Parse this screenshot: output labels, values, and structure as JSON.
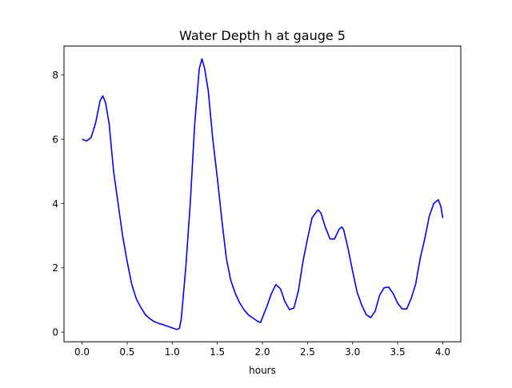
{
  "chart_data": {
    "type": "line",
    "title": "Water Depth h at gauge 5",
    "xlabel": "hours",
    "ylabel": "",
    "xlim": [
      -0.2,
      4.2
    ],
    "ylim": [
      -0.3,
      8.9
    ],
    "xticks": [
      0.0,
      0.5,
      1.0,
      1.5,
      2.0,
      2.5,
      3.0,
      3.5,
      4.0
    ],
    "xtick_labels": [
      "0.0",
      "0.5",
      "1.0",
      "1.5",
      "2.0",
      "2.5",
      "3.0",
      "3.5",
      "4.0"
    ],
    "yticks": [
      0,
      2,
      4,
      6,
      8
    ],
    "ytick_labels": [
      "0",
      "2",
      "4",
      "6",
      "8"
    ],
    "grid": false,
    "legend": false,
    "series": [
      {
        "color": "#0000ff",
        "x": [
          0.0,
          0.05,
          0.1,
          0.15,
          0.2,
          0.23,
          0.26,
          0.3,
          0.35,
          0.38,
          0.4,
          0.45,
          0.5,
          0.55,
          0.6,
          0.65,
          0.7,
          0.75,
          0.8,
          0.85,
          0.9,
          0.95,
          1.0,
          1.05,
          1.08,
          1.1,
          1.15,
          1.2,
          1.25,
          1.3,
          1.33,
          1.36,
          1.4,
          1.45,
          1.5,
          1.55,
          1.6,
          1.65,
          1.7,
          1.75,
          1.8,
          1.85,
          1.9,
          1.95,
          1.98,
          2.0,
          2.05,
          2.1,
          2.15,
          2.2,
          2.25,
          2.3,
          2.35,
          2.4,
          2.45,
          2.5,
          2.55,
          2.6,
          2.62,
          2.65,
          2.7,
          2.75,
          2.8,
          2.85,
          2.88,
          2.9,
          2.95,
          3.0,
          3.05,
          3.1,
          3.15,
          3.2,
          3.25,
          3.3,
          3.35,
          3.4,
          3.45,
          3.5,
          3.55,
          3.6,
          3.65,
          3.7,
          3.75,
          3.8,
          3.85,
          3.9,
          3.95,
          3.98,
          4.0
        ],
        "y": [
          6.0,
          5.95,
          6.05,
          6.5,
          7.2,
          7.35,
          7.15,
          6.5,
          5.0,
          4.4,
          4.0,
          3.0,
          2.2,
          1.5,
          1.05,
          0.78,
          0.55,
          0.42,
          0.33,
          0.27,
          0.23,
          0.18,
          0.13,
          0.08,
          0.12,
          0.4,
          2.0,
          4.0,
          6.5,
          8.2,
          8.5,
          8.2,
          7.5,
          6.0,
          4.8,
          3.5,
          2.3,
          1.6,
          1.2,
          0.9,
          0.68,
          0.52,
          0.43,
          0.33,
          0.3,
          0.45,
          0.8,
          1.2,
          1.48,
          1.35,
          0.95,
          0.7,
          0.75,
          1.3,
          2.2,
          2.9,
          3.55,
          3.75,
          3.8,
          3.7,
          3.25,
          2.9,
          2.9,
          3.2,
          3.27,
          3.2,
          2.6,
          1.9,
          1.25,
          0.85,
          0.55,
          0.45,
          0.65,
          1.15,
          1.38,
          1.4,
          1.2,
          0.9,
          0.72,
          0.72,
          1.05,
          1.5,
          2.3,
          2.9,
          3.6,
          4.0,
          4.12,
          3.9,
          3.55
        ]
      }
    ]
  }
}
